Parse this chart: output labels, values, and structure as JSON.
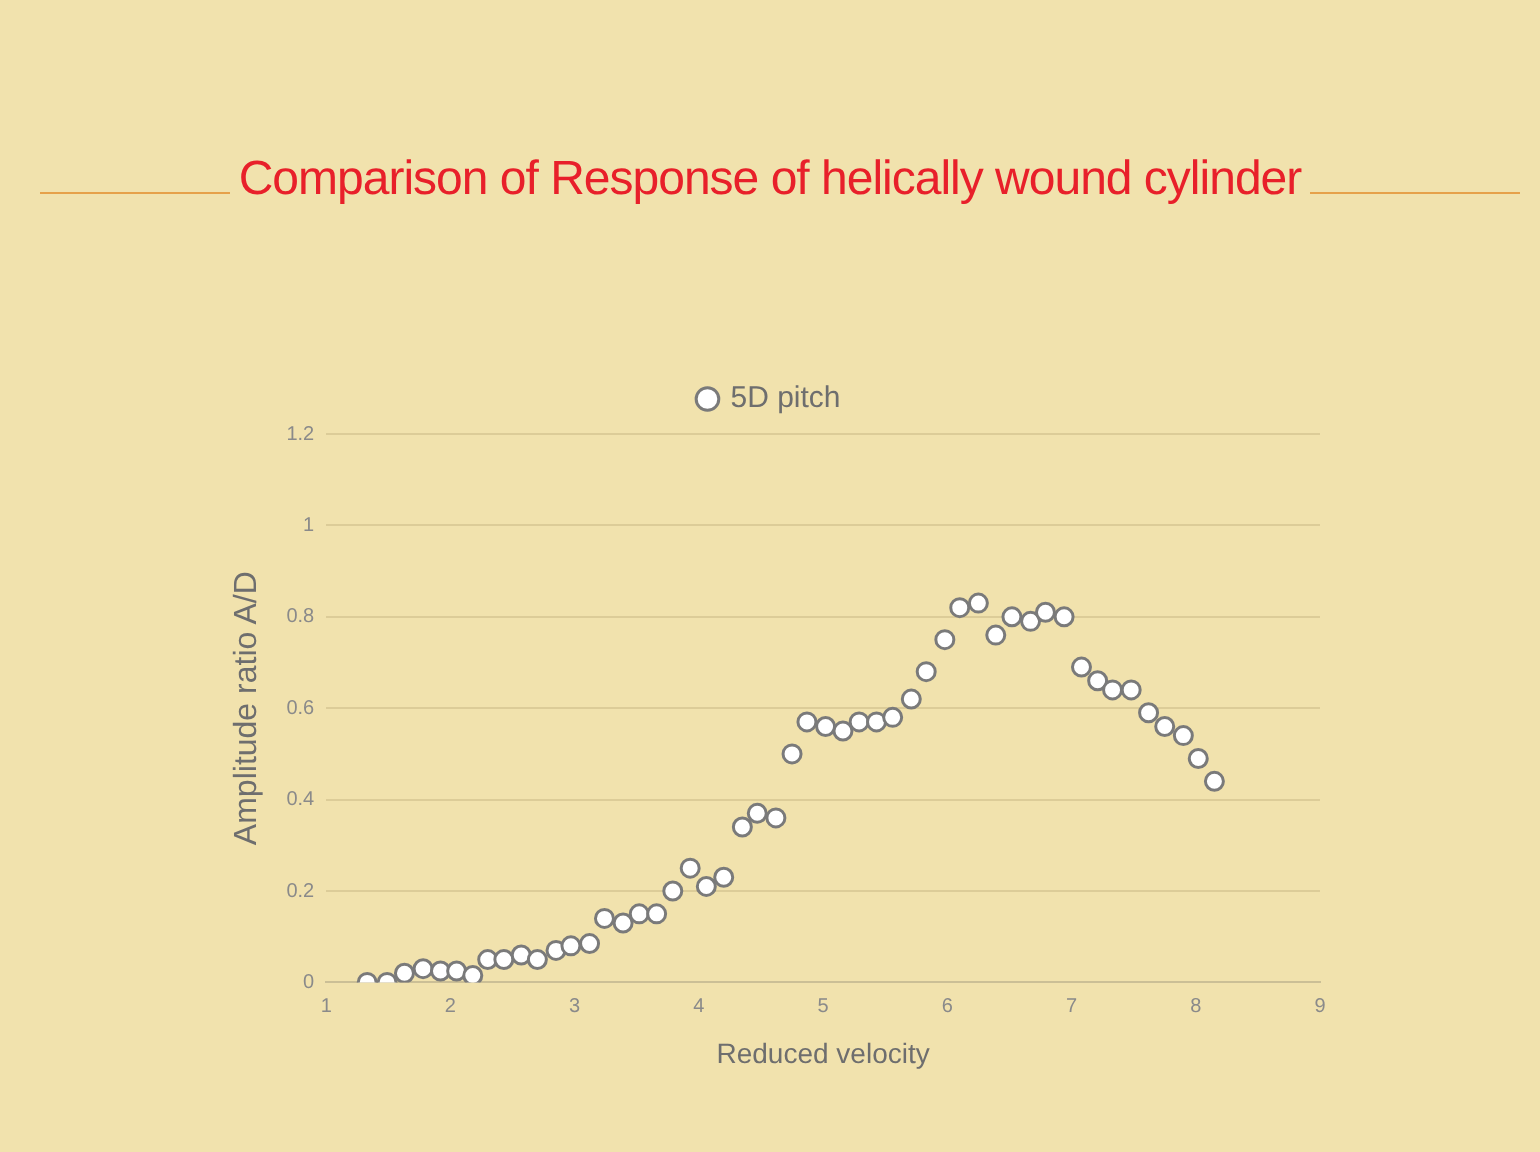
{
  "chart_data": {
    "type": "scatter",
    "title": "Comparison of Response of helically wound cylinder",
    "xlabel": "Reduced velocity",
    "ylabel": "Amplitude ratio A/D",
    "xlim": [
      1,
      9
    ],
    "xticks": [
      1,
      2,
      3,
      4,
      5,
      6,
      7,
      8,
      9
    ],
    "ylim": [
      0,
      1.2
    ],
    "yticks": [
      0,
      0.2,
      0.4,
      0.6,
      0.8,
      1,
      1.2
    ],
    "grid": "y",
    "legend": "top",
    "marker": "circle",
    "series": [
      {
        "name": "5D pitch",
        "color": "#ffffff",
        "x": [
          1.33,
          1.49,
          1.63,
          1.78,
          1.92,
          2.05,
          2.18,
          2.3,
          2.43,
          2.57,
          2.7,
          2.85,
          2.97,
          3.12,
          3.24,
          3.39,
          3.52,
          3.66,
          3.79,
          3.93,
          4.06,
          4.2,
          4.35,
          4.47,
          4.62,
          4.75,
          4.87,
          5.02,
          5.16,
          5.29,
          5.43,
          5.56,
          5.71,
          5.83,
          5.98,
          6.1,
          6.25,
          6.39,
          6.52,
          6.67,
          6.79,
          6.94,
          7.08,
          7.21,
          7.33,
          7.48,
          7.62,
          7.75,
          7.9,
          8.02,
          8.15
        ],
        "values": [
          0,
          0,
          0.02,
          0.03,
          0.025,
          0.025,
          0.015,
          0.05,
          0.05,
          0.06,
          0.05,
          0.07,
          0.08,
          0.085,
          0.14,
          0.13,
          0.15,
          0.15,
          0.2,
          0.25,
          0.21,
          0.23,
          0.34,
          0.37,
          0.36,
          0.5,
          0.57,
          0.56,
          0.55,
          0.57,
          0.57,
          0.58,
          0.62,
          0.68,
          0.75,
          0.82,
          0.83,
          0.76,
          0.8,
          0.79,
          0.81,
          0.8,
          0.69,
          0.66,
          0.64,
          0.64,
          0.59,
          0.56,
          0.54,
          0.49,
          0.44
        ]
      }
    ]
  }
}
